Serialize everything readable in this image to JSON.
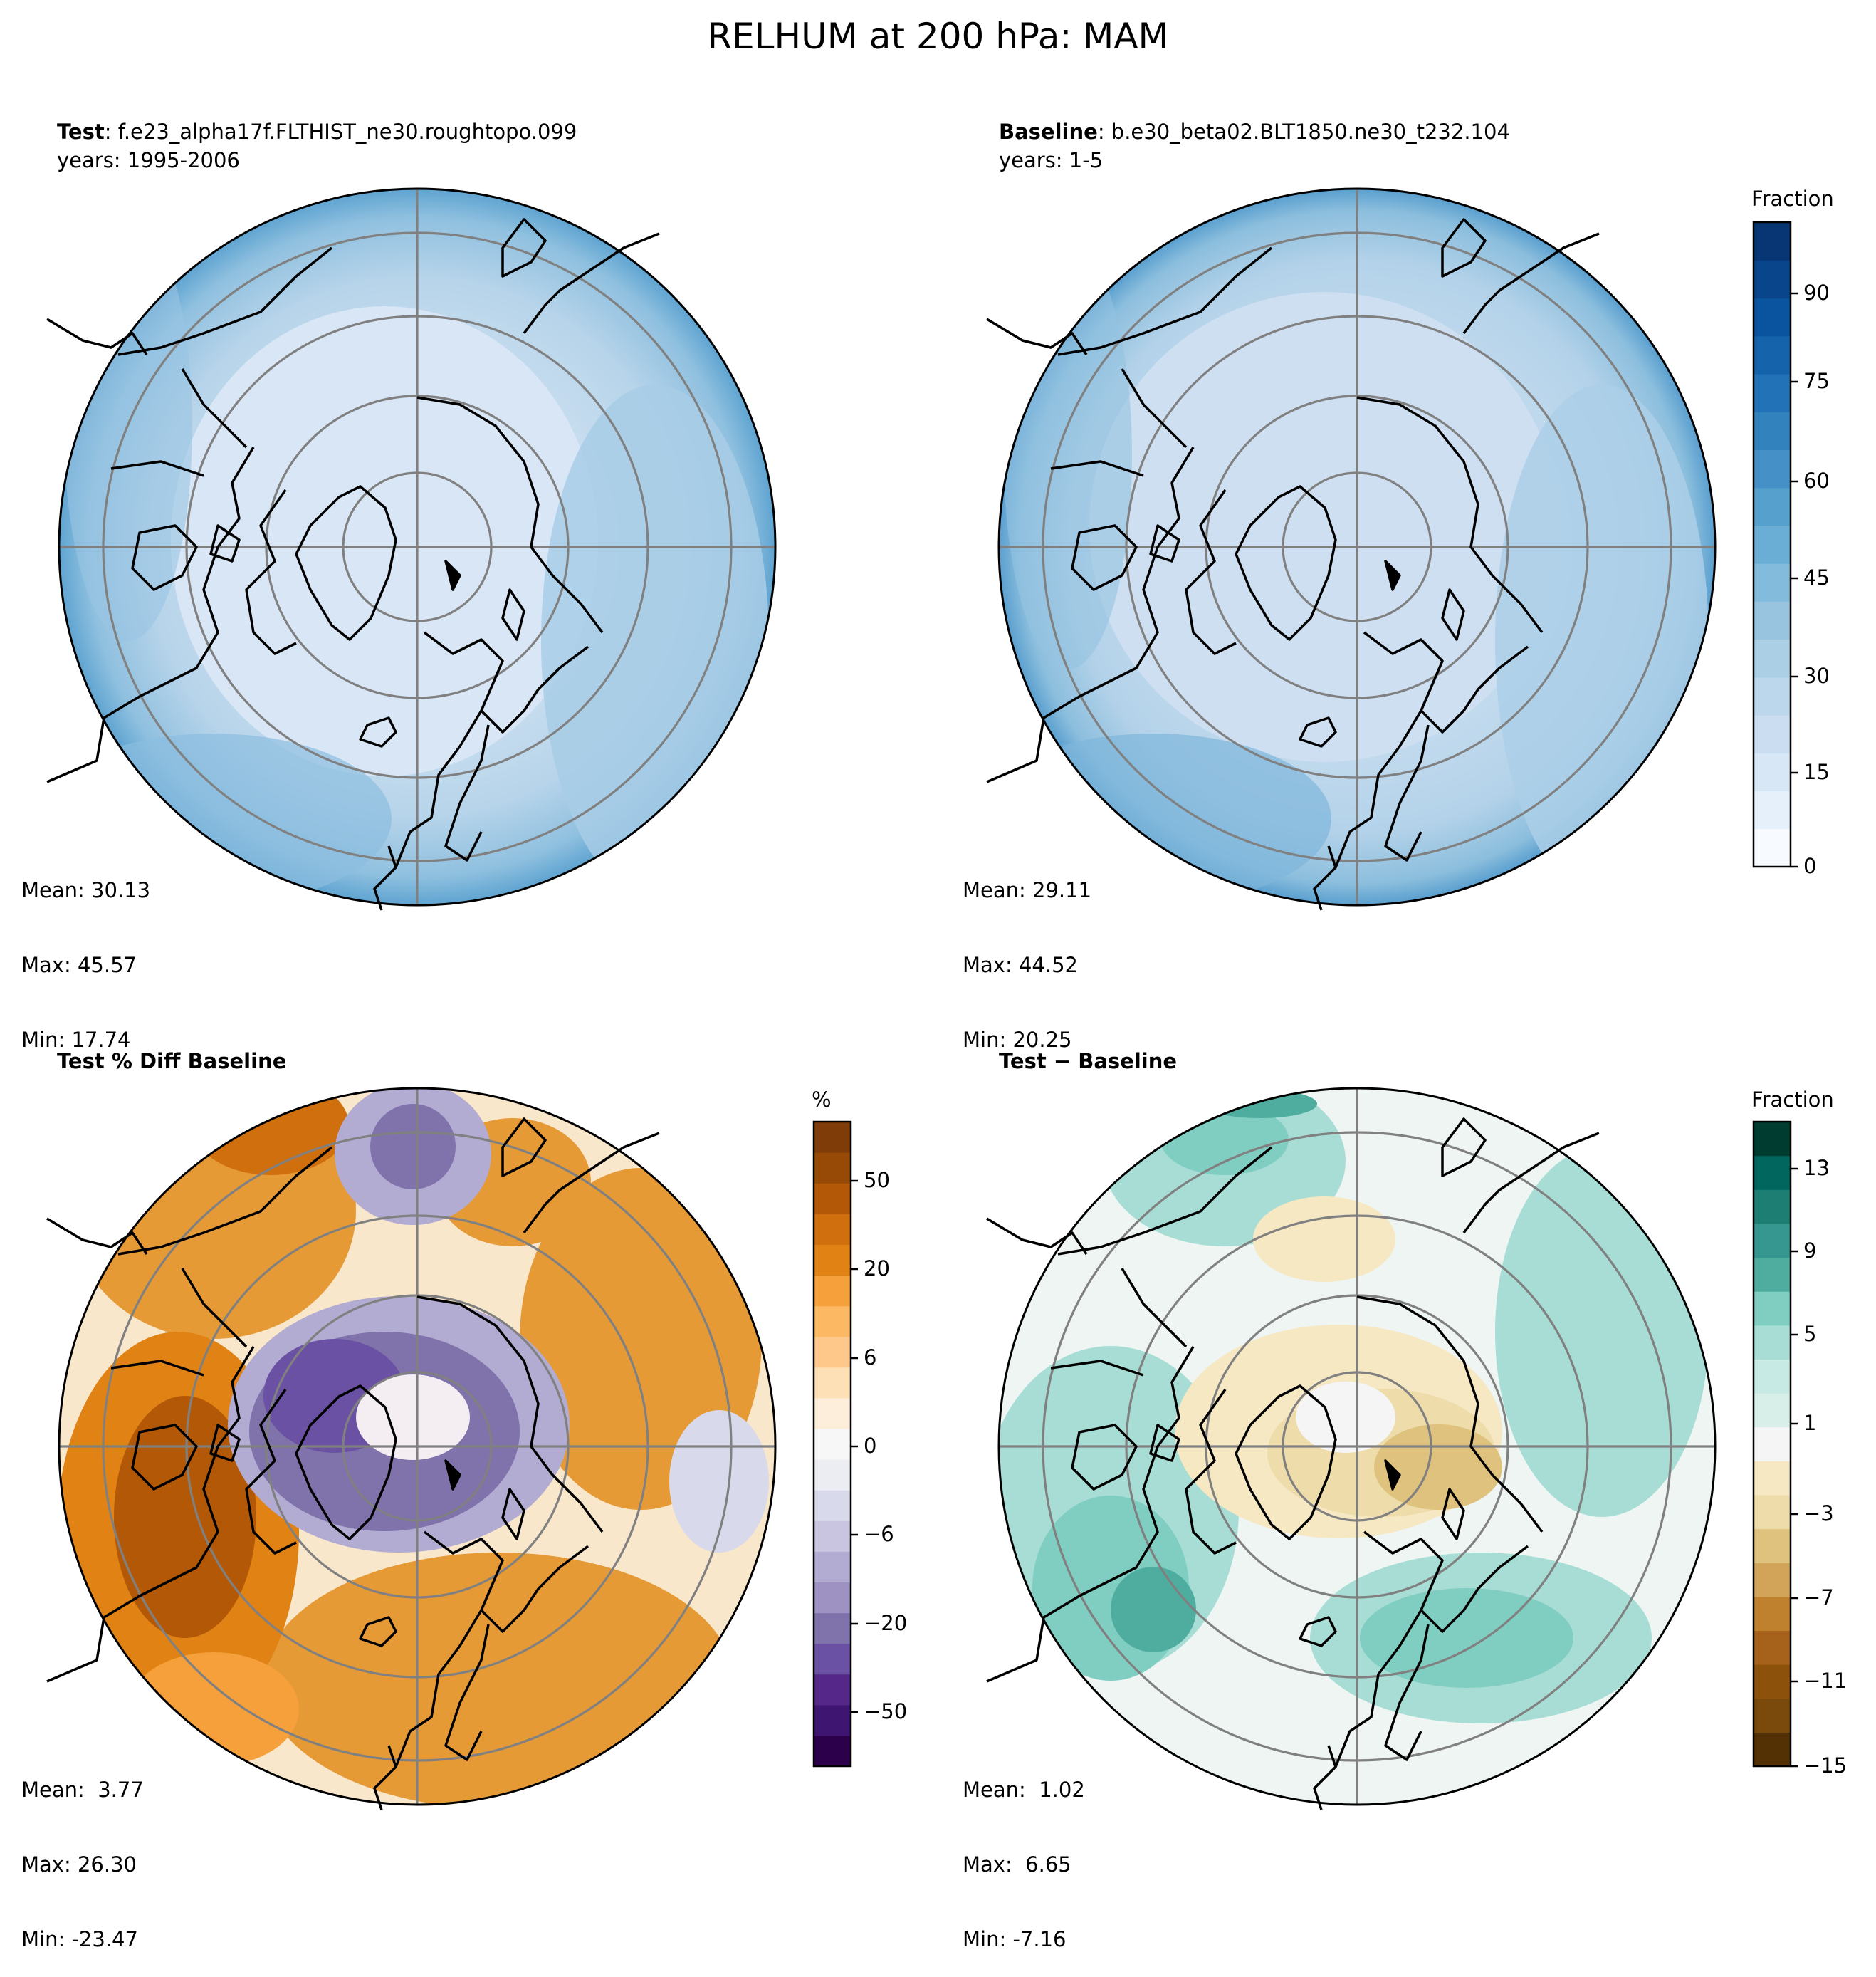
{
  "suptitle": "RELHUM at 200 hPa: MAM",
  "panels": {
    "test": {
      "title_bold": "Test",
      "title_rest": ": f.e23_alpha17f.FLTHIST_ne30.roughtopo.099",
      "years": "years: 1995-2006",
      "mean": "Mean: 30.13",
      "max": "Max: 45.57",
      "min": "Min: 17.74"
    },
    "baseline": {
      "title_bold": "Baseline",
      "title_rest": ": b.e30_beta02.BLT1850.ne30_t232.104",
      "years": "years: 1-5",
      "mean": "Mean: 29.11",
      "max": "Max: 44.52",
      "min": "Min: 20.25"
    },
    "pctdiff": {
      "title": "Test % Diff Baseline",
      "mean": "Mean:  3.77",
      "max": "Max: 26.30",
      "min": "Min: -23.47"
    },
    "diff": {
      "title": "Test − Baseline",
      "mean": "Mean:  1.02",
      "max": "Max:  6.65",
      "min": "Min: -7.16"
    }
  },
  "colorbars": {
    "main": {
      "label": "Fraction",
      "ticks": [
        "90",
        "75",
        "60",
        "45",
        "30",
        "15",
        "0"
      ],
      "colors": [
        "#f7fbff",
        "#e6f0fa",
        "#d8e7f5",
        "#cbdef1",
        "#bcd7eb",
        "#abd0e6",
        "#98c4e0",
        "#82bbdb",
        "#6aaed6",
        "#56a0ce",
        "#4591c7",
        "#3282be",
        "#2172b6",
        "#1563aa",
        "#0a539e",
        "#08458a",
        "#083674"
      ]
    },
    "pct": {
      "label": "%",
      "ticks": [
        "50",
        "20",
        "6",
        "0",
        "−6",
        "−20",
        "−50"
      ],
      "colors": [
        "#2d004b",
        "#3f1572",
        "#542788",
        "#6a51a3",
        "#8073ac",
        "#9d92c2",
        "#b2abd2",
        "#c9c4e0",
        "#d8daeb",
        "#ececf3",
        "#f7f7f7",
        "#fdeedc",
        "#fee0b6",
        "#fdc88a",
        "#fdb863",
        "#f5a03b",
        "#e08214",
        "#cf6f0e",
        "#b35806",
        "#974a06",
        "#7f3b08"
      ]
    },
    "diff": {
      "label": "Fraction",
      "ticks": [
        "13",
        "9",
        "5",
        "1",
        "−3",
        "−7",
        "−11",
        "−15"
      ],
      "colors": [
        "#543005",
        "#7a4a0c",
        "#8c510a",
        "#a6621a",
        "#bf812d",
        "#d2a45a",
        "#dfc27d",
        "#eedcaa",
        "#f6e8c3",
        "#f5f5f5",
        "#d8eee9",
        "#c7eae5",
        "#a7ddd5",
        "#80cdc1",
        "#4fada0",
        "#35978f",
        "#1d7f73",
        "#01665e",
        "#003c30"
      ]
    }
  },
  "icons": {
    "map_projection": "north-polar-stereo",
    "coastline_color": "#000000",
    "gridline_color": "#808080"
  }
}
